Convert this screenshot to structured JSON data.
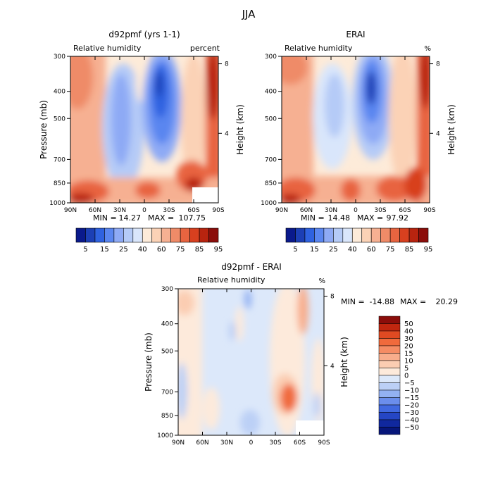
{
  "figure": {
    "title": "JJA"
  },
  "chart_data": [
    {
      "type": "heatmap",
      "title": "d92pmf (yrs 1-1)",
      "subtitle": "Relative humidity",
      "units": "percent",
      "xlabel": "",
      "ylabel": "Pressure (mb)",
      "ylabel_right": "Height (km)",
      "x_ticks": [
        "90N",
        "60N",
        "30N",
        "0",
        "30S",
        "60S",
        "90S"
      ],
      "y_ticks": [
        "300",
        "400",
        "500",
        "700",
        "850",
        "1000"
      ],
      "y_ticks_right": [
        "8",
        "4"
      ],
      "ylim": [
        1000,
        300
      ],
      "stats": {
        "min_label": "MIN =",
        "min": "14.27",
        "max_label": "MAX =",
        "max": "107.75"
      },
      "colorbar": {
        "orientation": "horizontal",
        "labels": [
          "5",
          "15",
          "25",
          "40",
          "60",
          "75",
          "85",
          "95"
        ],
        "colors": [
          "#0a1a8c",
          "#1c3fb5",
          "#2f62e0",
          "#5a86f0",
          "#8eaaf5",
          "#b5cbf7",
          "#d9e6fb",
          "#fdebd9",
          "#fbd2b6",
          "#f6b092",
          "#ef8b68",
          "#e86440",
          "#d8401f",
          "#b8240f",
          "#8b0d0a"
        ]
      }
    },
    {
      "type": "heatmap",
      "title": "ERAI",
      "subtitle": "Relative humidity",
      "units": "%",
      "xlabel": "",
      "ylabel": "",
      "ylabel_right": "Height (km)",
      "x_ticks": [
        "90N",
        "60N",
        "30N",
        "0",
        "30S",
        "60S",
        "90S"
      ],
      "y_ticks": [
        "300",
        "400",
        "500",
        "700",
        "850",
        "1000"
      ],
      "y_ticks_right": [
        "8",
        "4"
      ],
      "ylim": [
        1000,
        300
      ],
      "stats": {
        "min_label": "MIN =",
        "min": "14.48",
        "max_label": "MAX =",
        "max": "97.92"
      },
      "colorbar": {
        "orientation": "horizontal",
        "labels": [
          "5",
          "15",
          "25",
          "40",
          "60",
          "75",
          "85",
          "95"
        ],
        "colors": [
          "#0a1a8c",
          "#1c3fb5",
          "#2f62e0",
          "#5a86f0",
          "#8eaaf5",
          "#b5cbf7",
          "#d9e6fb",
          "#fdebd9",
          "#fbd2b6",
          "#f6b092",
          "#ef8b68",
          "#e86440",
          "#d8401f",
          "#b8240f",
          "#8b0d0a"
        ]
      }
    },
    {
      "type": "heatmap",
      "title": "d92pmf - ERAI",
      "subtitle": "Relative humidity",
      "units": "%",
      "xlabel": "",
      "ylabel": "Pressure (mb)",
      "ylabel_right": "Height (km)",
      "x_ticks": [
        "90N",
        "60N",
        "30N",
        "0",
        "30S",
        "60S",
        "90S"
      ],
      "y_ticks": [
        "300",
        "400",
        "500",
        "700",
        "850",
        "1000"
      ],
      "y_ticks_right": [
        "8",
        "4"
      ],
      "ylim": [
        1000,
        300
      ],
      "stats": {
        "min_label": "MIN =",
        "min": "-14.88",
        "max_label": "MAX =",
        "max": "20.29"
      },
      "colorbar": {
        "orientation": "vertical",
        "labels": [
          "50",
          "40",
          "30",
          "20",
          "15",
          "10",
          "5",
          "0",
          "-5",
          "-10",
          "-15",
          "-20",
          "-30",
          "-40",
          "-50"
        ],
        "colors": [
          "#8b0d0a",
          "#c0260f",
          "#e04a22",
          "#f06a3c",
          "#f58c64",
          "#f8ad8c",
          "#fbcdb2",
          "#fdeadb",
          "#dce8fa",
          "#bcd0f6",
          "#93b1f2",
          "#6b8eec",
          "#4169e0",
          "#2546c4",
          "#10289e",
          "#07167a"
        ]
      }
    }
  ]
}
